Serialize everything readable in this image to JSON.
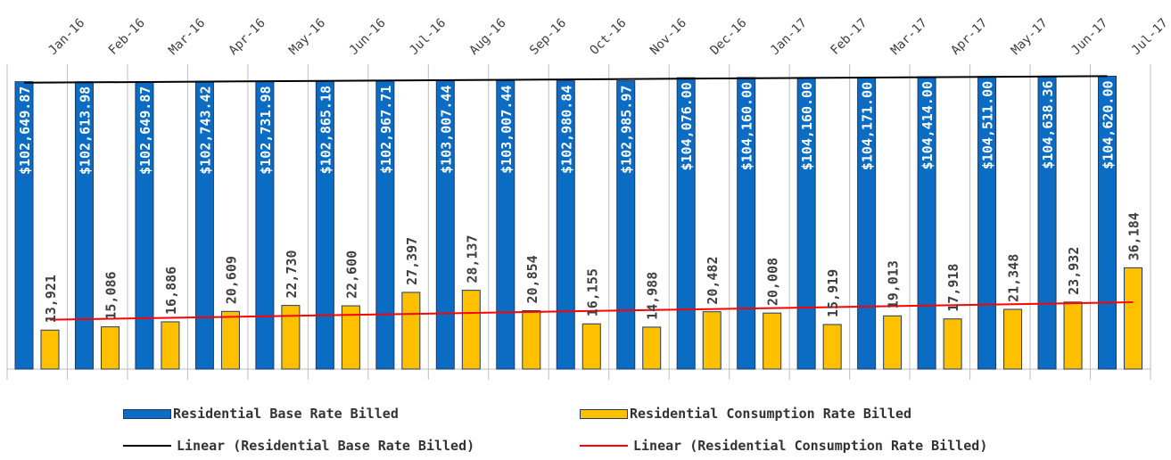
{
  "chart_data": {
    "type": "bar",
    "categories": [
      "Jan-16",
      "Feb-16",
      "Mar-16",
      "Apr-16",
      "May-16",
      "Jun-16",
      "Jul-16",
      "Aug-16",
      "Sep-16",
      "Oct-16",
      "Nov-16",
      "Dec-16",
      "Jan-17",
      "Feb-17",
      "Mar-17",
      "Apr-17",
      "May-17",
      "Jun-17",
      "Jul-17"
    ],
    "series": [
      {
        "name": "Residential Base Rate Billed",
        "color": "#0b6cc4",
        "values": [
          102649.87,
          102613.98,
          102649.87,
          102743.42,
          102731.98,
          102865.18,
          102967.71,
          103007.44,
          103007.44,
          102980.84,
          102985.97,
          104076.0,
          104160.0,
          104160.0,
          104171.0,
          104414.0,
          104511.0,
          104638.36,
          104620.0
        ],
        "labels": [
          "$102,649.87",
          "$102,613.98",
          "$102,649.87",
          "$102,743.42",
          "$102,731.98",
          "$102,865.18",
          "$102,967.71",
          "$103,007.44",
          "$103,007.44",
          "$102,980.84",
          "$102,985.97",
          "$104,076.00",
          "$104,160.00",
          "$104,160.00",
          "$104,171.00",
          "$104,414.00",
          "$104,511.00",
          "$104,638.36",
          "$104,620.00"
        ]
      },
      {
        "name": "Residential Consumption Rate Billed",
        "color": "#ffc000",
        "values": [
          13921,
          15086,
          16886,
          20609,
          22730,
          22600,
          27397,
          28137,
          20854,
          16155,
          14988,
          20482,
          20008,
          15919,
          19013,
          17918,
          21348,
          23932,
          36184
        ],
        "labels": [
          "13,921",
          "15,086",
          "16,886",
          "20,609",
          "22,730",
          "22,600",
          "27,397",
          "28,137",
          "20,854",
          "16,155",
          "14,988",
          "20,482",
          "20,008",
          "15,919",
          "19,013",
          "17,918",
          "21,348",
          "23,932",
          "36,184"
        ]
      }
    ],
    "trendlines": [
      {
        "name": "Linear (Residential Base Rate Billed)",
        "color": "#000000",
        "of_series": 0
      },
      {
        "name": "Linear (Residential Consumption Rate Billed)",
        "color": "#ff0000",
        "of_series": 1
      }
    ],
    "ylim": [
      0,
      107000
    ],
    "grid": false,
    "legend_position": "bottom"
  }
}
